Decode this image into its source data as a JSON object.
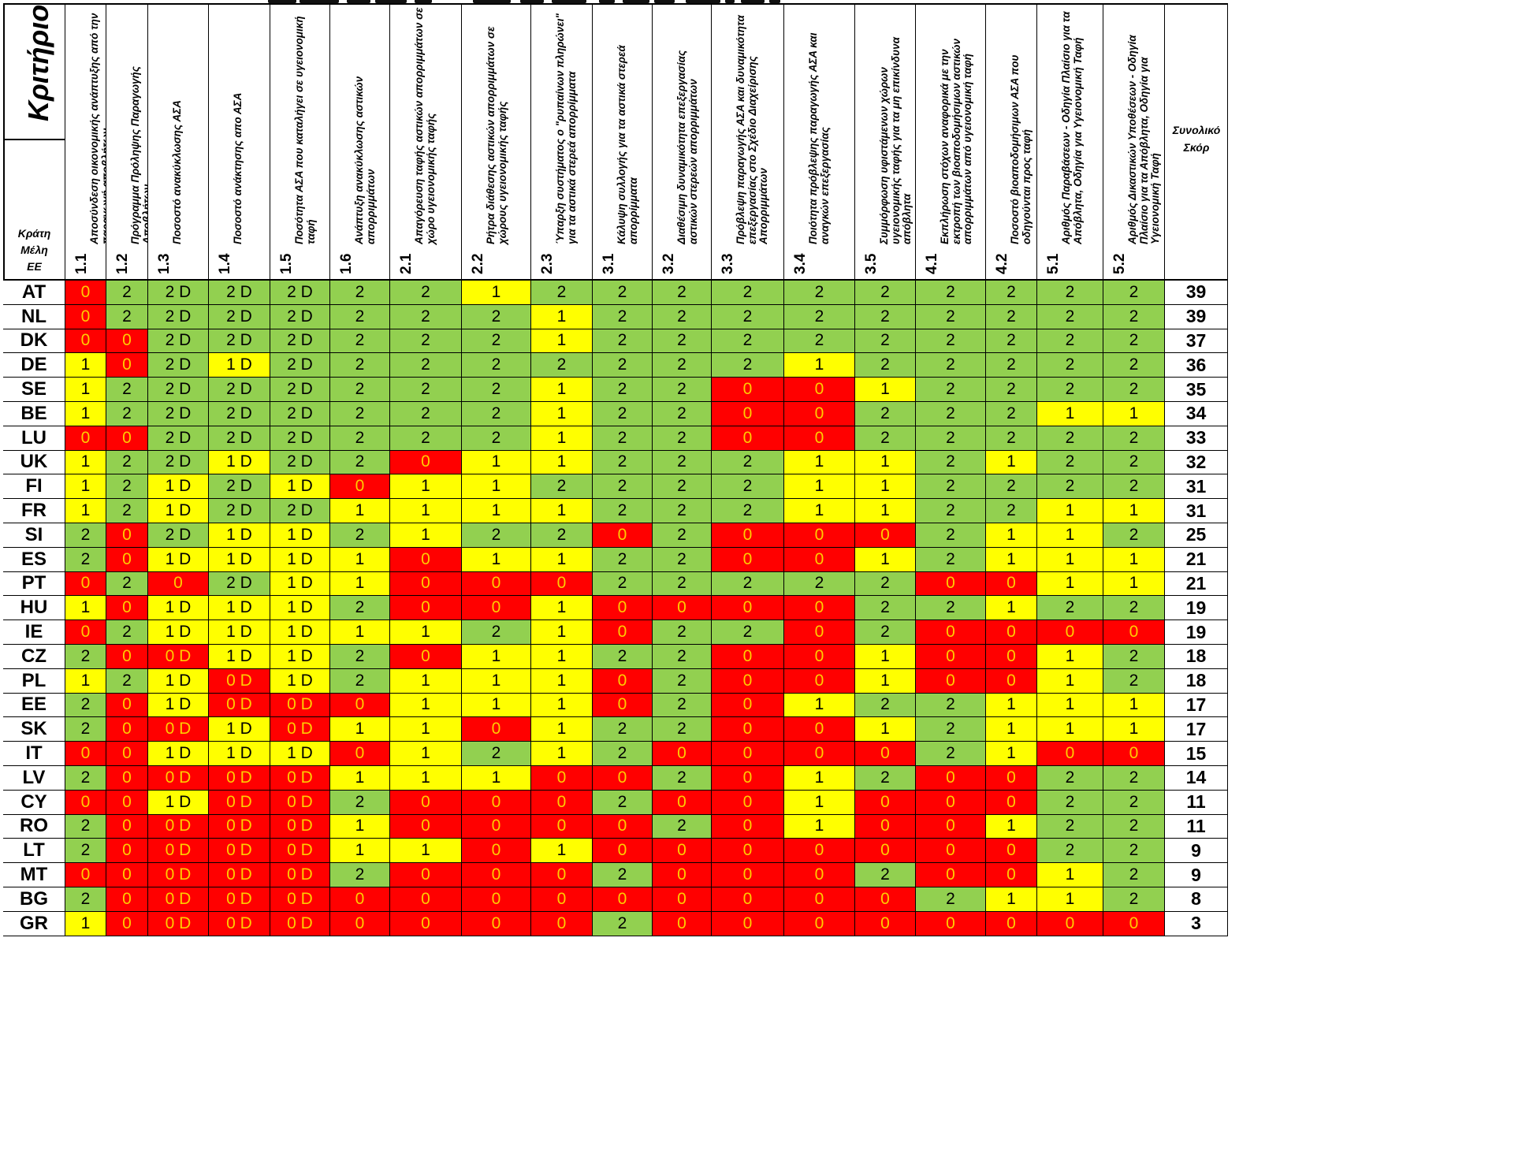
{
  "header": {
    "criterion_title": "Κριτήριο",
    "states_label": [
      "Κράτη",
      "Μέλη",
      "ΕΕ"
    ],
    "total_label": [
      "Συνολικό",
      "Σκόρ"
    ]
  },
  "criteria": [
    {
      "code": "1.1",
      "label": "Αποσύνδεση οικονομικής ανάπτυξης από την παραγωγή αποβλήτων"
    },
    {
      "code": "1.2",
      "label": "Πρόγραμμα Πρόληψης Παραγωγής Αποβλήτων"
    },
    {
      "code": "1.3",
      "label": "Ποσοστό ανακύκλωσης ΑΣΑ"
    },
    {
      "code": "1.4",
      "label": "Ποσοστό ανάκτησης απο ΑΣΑ"
    },
    {
      "code": "1.5",
      "label": "Ποσότητα ΑΣΑ που καταλήγει σε υγειονομική ταφή"
    },
    {
      "code": "1.6",
      "label": "Ανάπτυξη ανακύκλωσης αστικών απορριμμάτων"
    },
    {
      "code": "2.1",
      "label": "Απαγόρευση ταφής αστικών απορριμμάτων σε χώρο υγειονομικής ταφής"
    },
    {
      "code": "2.2",
      "label": "Ρήτρα διάθεσης αστικών απορριμμάτων σε χώρους υγειονομικής ταφής"
    },
    {
      "code": "2.3",
      "label": "Ύπαρξη συστήματος ο \"ρυπαίνων πληρώνει\" για τα αστικά στερεά απορρίμματα"
    },
    {
      "code": "3.1",
      "label": "Κάλυψη συλλογής για τα αστικά στερεά απορρίμματα"
    },
    {
      "code": "3.2",
      "label": "Διαθέσιμη δυναμικότητα επεξεργασίας αστικών στερεών απορριμμάτων"
    },
    {
      "code": "3.3",
      "label": "Πρόβλεψη παραγωγής ΑΣΑ και δυναμικότητα επεξεργασίας στο Σχέδιο Διαχείρισης Απορριμμάτων"
    },
    {
      "code": "3.4",
      "label": "Ποιότητα πρόβλεψης παραγωγής ΑΣΑ και αναγκών επεξεργασίας"
    },
    {
      "code": "3.5",
      "label": "Συμμόρφωση υφιστάμενων χώρων υγειονομικής ταφής για τα μη επικίνδυνα απόβλητα"
    },
    {
      "code": "4.1",
      "label": "Εκπλήρωση στόχων αναφορικά με την εκτροπή των βιοαποδομήσιμων αστικών απορριμμάτων από υγειονομική ταφή"
    },
    {
      "code": "4.2",
      "label": "Ποσοστό βιοαποδομήσιμων ΑΣΑ που οδηγούνται προς ταφή"
    },
    {
      "code": "5.1",
      "label": "Αριθμός Παραβάσεων - Οδηγία Πλαίσιο για τα Απόβλητα, Οδηγία για Υγειονομική Ταφή"
    },
    {
      "code": "5.2",
      "label": "Αριθμός Δικαστικών Υποθέσεων - Οδηγία Πλαίσιο για τα Απόβλητα, Οδηγία για Υγειονομική Ταφή"
    }
  ],
  "rows": [
    {
      "state": "AT",
      "scores": [
        "0",
        "2",
        "2 D",
        "2 D",
        "2 D",
        "2",
        "2",
        "1",
        "2",
        "2",
        "2",
        "2",
        "2",
        "2",
        "2",
        "2",
        "2",
        "2"
      ],
      "total": "39"
    },
    {
      "state": "NL",
      "scores": [
        "0",
        "2",
        "2 D",
        "2 D",
        "2 D",
        "2",
        "2",
        "2",
        "1",
        "2",
        "2",
        "2",
        "2",
        "2",
        "2",
        "2",
        "2",
        "2"
      ],
      "total": "39"
    },
    {
      "state": "DK",
      "scores": [
        "0",
        "0",
        "2 D",
        "2 D",
        "2 D",
        "2",
        "2",
        "2",
        "1",
        "2",
        "2",
        "2",
        "2",
        "2",
        "2",
        "2",
        "2",
        "2"
      ],
      "total": "37"
    },
    {
      "state": "DE",
      "scores": [
        "1",
        "0",
        "2 D",
        "1 D",
        "2 D",
        "2",
        "2",
        "2",
        "2",
        "2",
        "2",
        "2",
        "1",
        "2",
        "2",
        "2",
        "2",
        "2"
      ],
      "total": "36"
    },
    {
      "state": "SE",
      "scores": [
        "1",
        "2",
        "2 D",
        "2 D",
        "2 D",
        "2",
        "2",
        "2",
        "1",
        "2",
        "2",
        "0",
        "0",
        "1",
        "2",
        "2",
        "2",
        "2"
      ],
      "total": "35"
    },
    {
      "state": "BE",
      "scores": [
        "1",
        "2",
        "2 D",
        "2 D",
        "2 D",
        "2",
        "2",
        "2",
        "1",
        "2",
        "2",
        "0",
        "0",
        "2",
        "2",
        "2",
        "1",
        "1"
      ],
      "total": "34"
    },
    {
      "state": "LU",
      "scores": [
        "0",
        "0",
        "2 D",
        "2 D",
        "2 D",
        "2",
        "2",
        "2",
        "1",
        "2",
        "2",
        "0",
        "0",
        "2",
        "2",
        "2",
        "2",
        "2"
      ],
      "total": "33"
    },
    {
      "state": "UK",
      "scores": [
        "1",
        "2",
        "2 D",
        "1 D",
        "2 D",
        "2",
        "0",
        "1",
        "1",
        "2",
        "2",
        "2",
        "1",
        "1",
        "2",
        "1",
        "2",
        "2"
      ],
      "total": "32"
    },
    {
      "state": "FI",
      "scores": [
        "1",
        "2",
        "1 D",
        "2 D",
        "1 D",
        "0",
        "1",
        "1",
        "2",
        "2",
        "2",
        "2",
        "1",
        "1",
        "2",
        "2",
        "2",
        "2"
      ],
      "total": "31"
    },
    {
      "state": "FR",
      "scores": [
        "1",
        "2",
        "1 D",
        "2 D",
        "2 D",
        "1",
        "1",
        "1",
        "1",
        "2",
        "2",
        "2",
        "1",
        "1",
        "2",
        "2",
        "1",
        "1"
      ],
      "total": "31"
    },
    {
      "state": "SI",
      "scores": [
        "2",
        "0",
        "2 D",
        "1 D",
        "1 D",
        "2",
        "1",
        "2",
        "2",
        "0",
        "2",
        "0",
        "0",
        "0",
        "2",
        "1",
        "1",
        "2"
      ],
      "total": "25"
    },
    {
      "state": "ES",
      "scores": [
        "2",
        "0",
        "1 D",
        "1 D",
        "1 D",
        "1",
        "0",
        "1",
        "1",
        "2",
        "2",
        "0",
        "0",
        "1",
        "2",
        "1",
        "1",
        "1"
      ],
      "total": "21"
    },
    {
      "state": "PT",
      "scores": [
        "0",
        "2",
        "0",
        "2 D",
        "1 D",
        "1",
        "0",
        "0",
        "0",
        "2",
        "2",
        "2",
        "2",
        "2",
        "0",
        "0",
        "1",
        "1"
      ],
      "total": "21"
    },
    {
      "state": "HU",
      "scores": [
        "1",
        "0",
        "1 D",
        "1 D",
        "1 D",
        "2",
        "0",
        "0",
        "1",
        "0",
        "0",
        "0",
        "0",
        "2",
        "2",
        "1",
        "2",
        "2"
      ],
      "total": "19"
    },
    {
      "state": "IE",
      "scores": [
        "0",
        "2",
        "1 D",
        "1 D",
        "1 D",
        "1",
        "1",
        "2",
        "1",
        "0",
        "2",
        "2",
        "0",
        "2",
        "0",
        "0",
        "0",
        "0"
      ],
      "total": "19"
    },
    {
      "state": "CZ",
      "scores": [
        "2",
        "0",
        "0 D",
        "1 D",
        "1 D",
        "2",
        "0",
        "1",
        "1",
        "2",
        "2",
        "0",
        "0",
        "1",
        "0",
        "0",
        "1",
        "2"
      ],
      "total": "18"
    },
    {
      "state": "PL",
      "scores": [
        "1",
        "2",
        "1 D",
        "0 D",
        "1 D",
        "2",
        "1",
        "1",
        "1",
        "0",
        "2",
        "0",
        "0",
        "1",
        "0",
        "0",
        "1",
        "2"
      ],
      "total": "18"
    },
    {
      "state": "EE",
      "scores": [
        "2",
        "0",
        "1 D",
        "0 D",
        "0 D",
        "0",
        "1",
        "1",
        "1",
        "0",
        "2",
        "0",
        "1",
        "2",
        "2",
        "1",
        "1",
        "1"
      ],
      "total": "17"
    },
    {
      "state": "SK",
      "scores": [
        "2",
        "0",
        "0 D",
        "1 D",
        "0 D",
        "1",
        "1",
        "0",
        "1",
        "2",
        "2",
        "0",
        "0",
        "1",
        "2",
        "1",
        "1",
        "1"
      ],
      "total": "17"
    },
    {
      "state": "IT",
      "scores": [
        "0",
        "0",
        "1 D",
        "1 D",
        "1 D",
        "0",
        "1",
        "2",
        "1",
        "2",
        "0",
        "0",
        "0",
        "0",
        "2",
        "1",
        "0",
        "0"
      ],
      "total": "15"
    },
    {
      "state": "LV",
      "scores": [
        "2",
        "0",
        "0 D",
        "0 D",
        "0 D",
        "1",
        "1",
        "1",
        "0",
        "0",
        "2",
        "0",
        "1",
        "2",
        "0",
        "0",
        "2",
        "2"
      ],
      "total": "14"
    },
    {
      "state": "CY",
      "scores": [
        "0",
        "0",
        "1 D",
        "0 D",
        "0 D",
        "2",
        "0",
        "0",
        "0",
        "2",
        "0",
        "0",
        "1",
        "0",
        "0",
        "0",
        "2",
        "2"
      ],
      "total": "11"
    },
    {
      "state": "RO",
      "scores": [
        "2",
        "0",
        "0 D",
        "0 D",
        "0 D",
        "1",
        "0",
        "0",
        "0",
        "0",
        "2",
        "0",
        "1",
        "0",
        "0",
        "1",
        "2",
        "2"
      ],
      "total": "11"
    },
    {
      "state": "LT",
      "scores": [
        "2",
        "0",
        "0 D",
        "0 D",
        "0 D",
        "1",
        "1",
        "0",
        "1",
        "0",
        "0",
        "0",
        "0",
        "0",
        "0",
        "0",
        "2",
        "2"
      ],
      "total": "9"
    },
    {
      "state": "MT",
      "scores": [
        "0",
        "0",
        "0 D",
        "0 D",
        "0 D",
        "2",
        "0",
        "0",
        "0",
        "2",
        "0",
        "0",
        "0",
        "2",
        "0",
        "0",
        "1",
        "2"
      ],
      "total": "9"
    },
    {
      "state": "BG",
      "scores": [
        "2",
        "0",
        "0 D",
        "0 D",
        "0 D",
        "0",
        "0",
        "0",
        "0",
        "0",
        "0",
        "0",
        "0",
        "0",
        "2",
        "1",
        "1",
        "2"
      ],
      "total": "8"
    },
    {
      "state": "GR",
      "scores": [
        "1",
        "0",
        "0 D",
        "0 D",
        "0 D",
        "0",
        "0",
        "0",
        "0",
        "2",
        "0",
        "0",
        "0",
        "0",
        "0",
        "0",
        "0",
        "0"
      ],
      "total": "3"
    }
  ],
  "colors": {
    "0": "#ff0000",
    "1": "#ffff00",
    "2": "#92d050",
    "zero_text": "#ffcc00"
  }
}
